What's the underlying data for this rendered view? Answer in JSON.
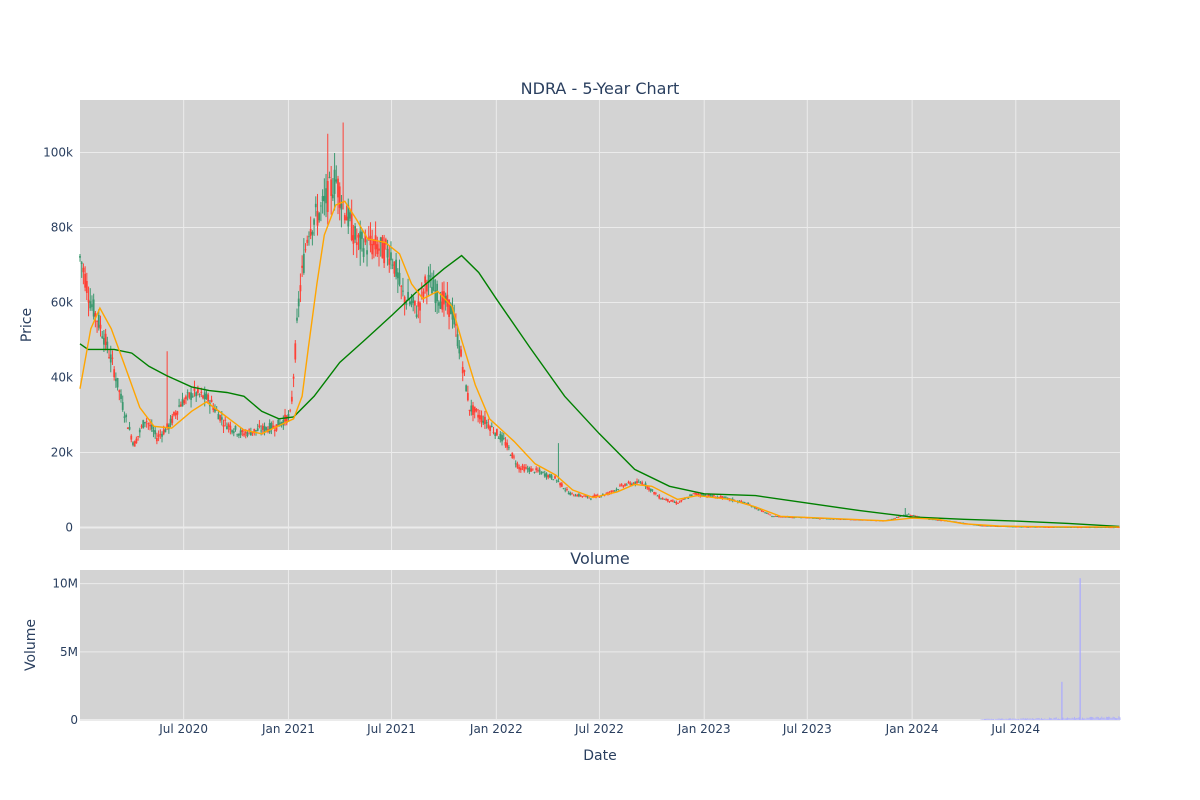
{
  "colors": {
    "plot_bg": "#d3d3d3",
    "grid": "#ebebeb",
    "up": "#3d9970",
    "down": "#ff4136",
    "ma_short": "#ffa500",
    "ma_long": "#008000",
    "volume": "#a9a9ff"
  },
  "chart_data": [
    {
      "type": "candlestick",
      "title": "NDRA - 5-Year Chart",
      "ylabel": "Price",
      "ylim": [
        -6000,
        114000
      ],
      "yticks": [
        0,
        20000,
        40000,
        60000,
        80000,
        100000
      ],
      "ytick_labels": [
        "0",
        "20k",
        "40k",
        "60k",
        "80k",
        "100k"
      ],
      "grid": true,
      "price_path": [
        [
          "2020-01-02",
          72000
        ],
        [
          "2020-01-20",
          60000
        ],
        [
          "2020-02-10",
          52000
        ],
        [
          "2020-03-01",
          42000
        ],
        [
          "2020-03-20",
          30000
        ],
        [
          "2020-04-05",
          22000
        ],
        [
          "2020-04-25",
          29000
        ],
        [
          "2020-05-15",
          24000
        ],
        [
          "2020-06-05",
          27000
        ],
        [
          "2020-06-25",
          33000
        ],
        [
          "2020-07-20",
          36000
        ],
        [
          "2020-08-15",
          34000
        ],
        [
          "2020-09-10",
          28000
        ],
        [
          "2020-10-10",
          25000
        ],
        [
          "2020-11-10",
          26000
        ],
        [
          "2020-12-10",
          27000
        ],
        [
          "2021-01-05",
          30000
        ],
        [
          "2021-01-20",
          62000
        ],
        [
          "2021-02-05",
          80000
        ],
        [
          "2021-03-01",
          85000
        ],
        [
          "2021-03-25",
          93000
        ],
        [
          "2021-04-10",
          85000
        ],
        [
          "2021-05-01",
          76000
        ],
        [
          "2021-06-01",
          75000
        ],
        [
          "2021-07-01",
          73000
        ],
        [
          "2021-07-20",
          62000
        ],
        [
          "2021-08-15",
          58000
        ],
        [
          "2021-09-01",
          66000
        ],
        [
          "2021-09-20",
          62000
        ],
        [
          "2021-10-15",
          58000
        ],
        [
          "2021-11-01",
          45000
        ],
        [
          "2021-11-15",
          32000
        ],
        [
          "2021-12-15",
          28000
        ],
        [
          "2022-01-15",
          23000
        ],
        [
          "2022-02-10",
          16000
        ],
        [
          "2022-03-15",
          15000
        ],
        [
          "2022-04-15",
          13000
        ],
        [
          "2022-05-10",
          9000
        ],
        [
          "2022-06-15",
          8000
        ],
        [
          "2022-07-15",
          9000
        ],
        [
          "2022-08-15",
          11500
        ],
        [
          "2022-09-15",
          12000
        ],
        [
          "2022-10-15",
          8000
        ],
        [
          "2022-11-15",
          6500
        ],
        [
          "2022-12-15",
          9000
        ],
        [
          "2023-02-01",
          8000
        ],
        [
          "2023-03-15",
          6500
        ],
        [
          "2023-05-01",
          3000
        ],
        [
          "2023-07-01",
          2600
        ],
        [
          "2023-09-01",
          2200
        ],
        [
          "2023-11-15",
          1800
        ],
        [
          "2023-12-25",
          3500
        ],
        [
          "2024-02-01",
          2200
        ],
        [
          "2024-03-15",
          1600
        ],
        [
          "2024-05-01",
          500
        ],
        [
          "2024-07-01",
          200
        ],
        [
          "2024-09-01",
          100
        ],
        [
          "2024-12-30",
          50
        ]
      ],
      "spikes": [
        [
          "2020-06-01",
          47000
        ],
        [
          "2021-03-10",
          105000
        ],
        [
          "2021-04-05",
          108000
        ],
        [
          "2022-04-20",
          22500
        ],
        [
          "2023-12-20",
          5200
        ]
      ],
      "series": [
        {
          "line": "ma_short",
          "points": [
            [
              "2020-01-01",
              37000
            ],
            [
              "2020-01-20",
              53000
            ],
            [
              "2020-02-05",
              58500
            ],
            [
              "2020-02-25",
              53000
            ],
            [
              "2020-03-20",
              43000
            ],
            [
              "2020-04-15",
              32000
            ],
            [
              "2020-05-10",
              27000
            ],
            [
              "2020-06-10",
              26500
            ],
            [
              "2020-07-15",
              31000
            ],
            [
              "2020-08-10",
              33500
            ],
            [
              "2020-09-10",
              30000
            ],
            [
              "2020-10-15",
              26000
            ],
            [
              "2020-11-15",
              25000
            ],
            [
              "2020-12-20",
              27500
            ],
            [
              "2021-01-10",
              29000
            ],
            [
              "2021-01-25",
              35000
            ],
            [
              "2021-02-05",
              48000
            ],
            [
              "2021-02-20",
              65000
            ],
            [
              "2021-03-05",
              78000
            ],
            [
              "2021-03-25",
              86000
            ],
            [
              "2021-04-10",
              87000
            ],
            [
              "2021-05-01",
              82000
            ],
            [
              "2021-05-20",
              77000
            ],
            [
              "2021-06-20",
              76000
            ],
            [
              "2021-07-15",
              73000
            ],
            [
              "2021-08-05",
              65000
            ],
            [
              "2021-08-25",
              61000
            ],
            [
              "2021-09-20",
              63000
            ],
            [
              "2021-10-15",
              59000
            ],
            [
              "2021-11-01",
              50000
            ],
            [
              "2021-11-25",
              38000
            ],
            [
              "2021-12-20",
              29000
            ],
            [
              "2022-02-01",
              23000
            ],
            [
              "2022-03-10",
              17000
            ],
            [
              "2022-04-15",
              14000
            ],
            [
              "2022-05-15",
              10000
            ],
            [
              "2022-06-20",
              8000
            ],
            [
              "2022-08-01",
              9500
            ],
            [
              "2022-09-01",
              11500
            ],
            [
              "2022-10-01",
              11000
            ],
            [
              "2022-11-15",
              7500
            ],
            [
              "2022-12-20",
              8500
            ],
            [
              "2023-02-15",
              7500
            ],
            [
              "2023-04-01",
              5500
            ],
            [
              "2023-05-15",
              3000
            ],
            [
              "2023-07-01",
              2700
            ],
            [
              "2023-09-01",
              2300
            ],
            [
              "2023-11-15",
              1800
            ],
            [
              "2024-01-01",
              2500
            ],
            [
              "2024-02-15",
              2200
            ],
            [
              "2024-04-01",
              1000
            ],
            [
              "2024-06-01",
              400
            ],
            [
              "2024-09-01",
              200
            ],
            [
              "2024-12-30",
              150
            ]
          ]
        },
        {
          "line": "ma_long",
          "points": [
            [
              "2020-01-01",
              49000
            ],
            [
              "2020-01-15",
              47500
            ],
            [
              "2020-03-01",
              47500
            ],
            [
              "2020-04-01",
              46500
            ],
            [
              "2020-05-01",
              43000
            ],
            [
              "2020-06-01",
              40500
            ],
            [
              "2020-07-15",
              37500
            ],
            [
              "2020-08-15",
              36500
            ],
            [
              "2020-09-15",
              36000
            ],
            [
              "2020-10-15",
              35000
            ],
            [
              "2020-11-15",
              31000
            ],
            [
              "2020-12-15",
              29000
            ],
            [
              "2021-01-10",
              29500
            ],
            [
              "2021-02-15",
              35000
            ],
            [
              "2021-04-01",
              44000
            ],
            [
              "2021-05-15",
              50000
            ],
            [
              "2021-07-01",
              56500
            ],
            [
              "2021-08-15",
              63000
            ],
            [
              "2021-10-01",
              69000
            ],
            [
              "2021-11-01",
              72500
            ],
            [
              "2021-12-01",
              68000
            ],
            [
              "2022-01-01",
              61000
            ],
            [
              "2022-03-01",
              48000
            ],
            [
              "2022-05-01",
              35000
            ],
            [
              "2022-07-01",
              25000
            ],
            [
              "2022-09-01",
              15500
            ],
            [
              "2022-11-01",
              11000
            ],
            [
              "2023-01-01",
              9000
            ],
            [
              "2023-04-01",
              8500
            ],
            [
              "2023-07-01",
              6500
            ],
            [
              "2023-10-01",
              4500
            ],
            [
              "2024-01-01",
              2800
            ],
            [
              "2024-04-01",
              2200
            ],
            [
              "2024-07-01",
              1700
            ],
            [
              "2024-10-01",
              1100
            ],
            [
              "2024-12-30",
              300
            ]
          ]
        }
      ]
    },
    {
      "type": "bar",
      "title": "Volume",
      "xlabel": "Date",
      "ylabel": "Volume",
      "ylim": [
        0,
        11000000
      ],
      "yticks": [
        0,
        5000000,
        10000000
      ],
      "ytick_labels": [
        "0",
        "5M",
        "10M"
      ],
      "xticks": [
        "2020-07-01",
        "2021-01-01",
        "2021-07-01",
        "2022-01-01",
        "2022-07-01",
        "2023-01-01",
        "2023-07-01",
        "2024-01-01",
        "2024-07-01"
      ],
      "xtick_labels": [
        "Jul 2020",
        "Jan 2021",
        "Jul 2021",
        "Jan 2022",
        "Jul 2022",
        "Jan 2023",
        "Jul 2023",
        "Jan 2024",
        "Jul 2024"
      ],
      "xlim": [
        "2020-01-01",
        "2024-12-31"
      ],
      "spikes": [
        [
          "2024-09-20",
          2800000
        ],
        [
          "2024-10-22",
          10400000
        ]
      ],
      "base_volume": [
        [
          "2024-05-01",
          60000
        ],
        [
          "2024-12-31",
          200000
        ]
      ]
    }
  ]
}
